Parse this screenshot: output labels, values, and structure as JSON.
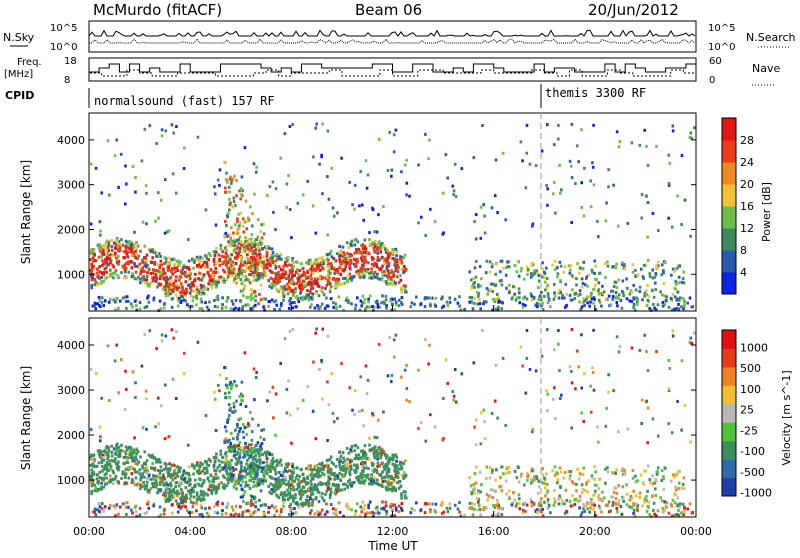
{
  "header": {
    "station": "McMurdo (fitACF)",
    "beam": "Beam 06",
    "date": "20/Jun/2012"
  },
  "status_panel": {
    "left_labels": [
      "N.Sky",
      "Freq.",
      "[MHz]",
      "CPID"
    ],
    "right_labels": [
      "N.Search",
      "Nave"
    ],
    "noise_ticks_left": [
      "10^5",
      "10^0"
    ],
    "noise_ticks_right": [
      "10^5",
      "10^0"
    ],
    "freq_ticks": [
      "18",
      "8"
    ],
    "nave_ticks": [
      "60",
      "0"
    ],
    "cpid_segments": [
      {
        "label": "normalsound (fast) 157 RF",
        "start_hour": 0
      },
      {
        "label": "themis 3300 RF",
        "start_hour": 18
      }
    ]
  },
  "chart_data": [
    {
      "type": "heatmap",
      "name": "power",
      "ylabel": "Slant Range [km]",
      "xlabel": "",
      "y_ticks": [
        "1000",
        "2000",
        "3000",
        "4000"
      ],
      "ylim": [
        180,
        4600
      ],
      "colorbar": {
        "label": "Power [dB]",
        "ticks": [
          "4",
          "8",
          "12",
          "16",
          "20",
          "24",
          "28"
        ],
        "range": [
          0,
          30
        ],
        "colors": [
          "#0a23e6",
          "#2a5ab0",
          "#3f8a5c",
          "#6cc04a",
          "#f2c233",
          "#f08a1e",
          "#ee3a1a",
          "#e4140f"
        ]
      }
    },
    {
      "type": "heatmap",
      "name": "velocity",
      "ylabel": "Slant Range [km]",
      "xlabel": "Time UT",
      "x_ticks": [
        "00:00",
        "04:00",
        "08:00",
        "12:00",
        "16:00",
        "20:00",
        "00:00"
      ],
      "y_ticks": [
        "1000",
        "2000",
        "3000",
        "4000"
      ],
      "ylim": [
        180,
        4600
      ],
      "colorbar": {
        "label": "Velocity [m s^-1]",
        "ticks": [
          "1000",
          "500",
          "100",
          "25",
          "-25",
          "-100",
          "-500",
          "-1000"
        ],
        "colors": [
          "#1f3fa8",
          "#2d6aa8",
          "#3c8f5a",
          "#4fc43a",
          "#b8b8b8",
          "#f0c030",
          "#f08020",
          "#e83a18",
          "#e01010"
        ]
      }
    }
  ]
}
